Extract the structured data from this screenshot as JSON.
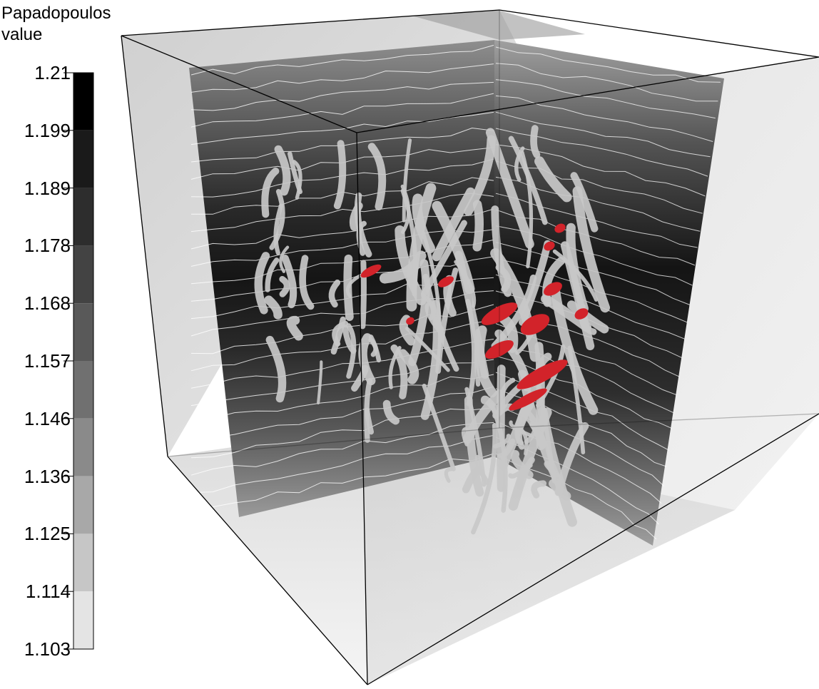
{
  "legend": {
    "title_line1": "Papadopoulos",
    "title_line2": "value",
    "levels": [
      {
        "label": "1.21",
        "color": "#000000"
      },
      {
        "label": "1.199",
        "color": "#1a1a1a"
      },
      {
        "label": "1.189",
        "color": "#2d2d2d"
      },
      {
        "label": "1.178",
        "color": "#434343"
      },
      {
        "label": "1.168",
        "color": "#595959"
      },
      {
        "label": "1.157",
        "color": "#707070"
      },
      {
        "label": "1.146",
        "color": "#8a8a8a"
      },
      {
        "label": "1.136",
        "color": "#a8a8a8"
      },
      {
        "label": "1.125",
        "color": "#c6c6c6"
      },
      {
        "label": "1.114",
        "color": "#e4e4e4"
      },
      {
        "label": "1.103",
        "color": "#ffffff"
      }
    ]
  },
  "colors": {
    "isosurface_gray": "#c8c8c8",
    "isosurface_red": "#d2232a",
    "slice_dark": "#1a1a1a",
    "box_edge": "#000000"
  }
}
